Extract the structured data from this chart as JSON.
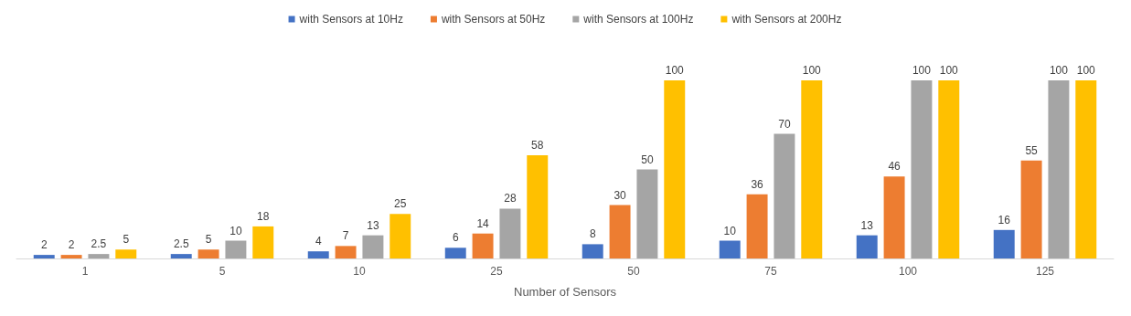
{
  "chart_data": {
    "type": "bar",
    "xlabel": "Number of Sensors",
    "categories": [
      "1",
      "5",
      "10",
      "25",
      "50",
      "75",
      "100",
      "125"
    ],
    "series": [
      {
        "name": "with Sensors at 10Hz",
        "color": "#4472c4",
        "values": [
          2,
          2.5,
          4,
          6,
          8,
          10,
          13,
          16
        ]
      },
      {
        "name": "with Sensors at 50Hz",
        "color": "#ed7d31",
        "values": [
          2,
          5,
          7,
          14,
          30,
          36,
          46,
          55
        ]
      },
      {
        "name": "with Sensors at 100Hz",
        "color": "#a5a5a5",
        "values": [
          2.5,
          10,
          13,
          28,
          50,
          70,
          100,
          100
        ]
      },
      {
        "name": "with Sensors at 200Hz",
        "color": "#ffc000",
        "values": [
          5,
          18,
          25,
          58,
          100,
          100,
          100,
          100
        ]
      }
    ],
    "data_labels": true,
    "legend": "top",
    "tick_labels": "x"
  }
}
